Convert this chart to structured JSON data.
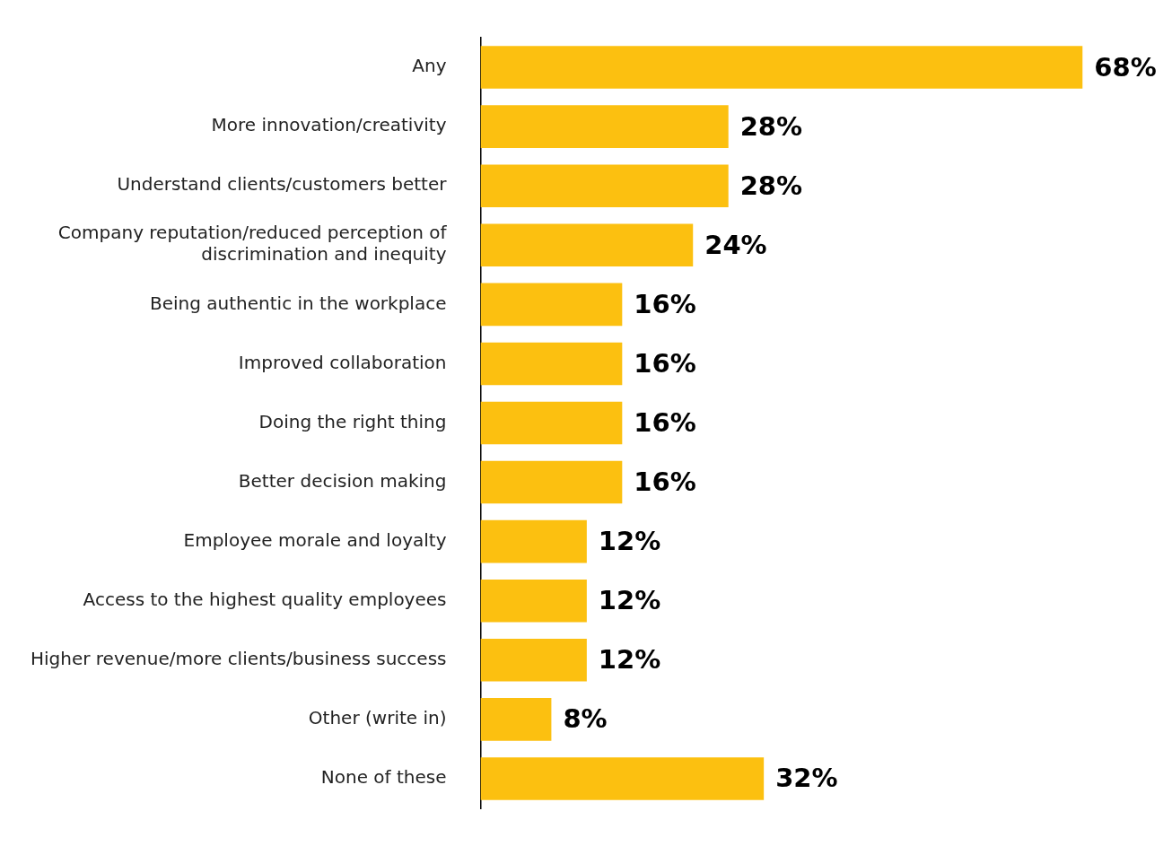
{
  "chart_data": {
    "type": "bar",
    "orientation": "horizontal",
    "categories": [
      "Any",
      "More innovation/creativity",
      "Understand clients/customers better",
      "Company reputation/reduced perception of discrimination and inequity",
      "Being authentic in the workplace",
      "Improved collaboration",
      "Doing the right thing",
      "Better decision making",
      "Employee morale and loyalty",
      "Access to the highest quality employees",
      "Higher revenue/more clients/business success",
      "Other (write in)",
      "None of these"
    ],
    "values": [
      68,
      28,
      28,
      24,
      16,
      16,
      16,
      16,
      12,
      12,
      12,
      8,
      32
    ],
    "value_labels": [
      "68%",
      "28%",
      "28%",
      "24%",
      "16%",
      "16%",
      "16%",
      "16%",
      "12%",
      "12%",
      "12%",
      "8%",
      "32%"
    ],
    "color": "#fcc010",
    "tick_labels": "y"
  }
}
